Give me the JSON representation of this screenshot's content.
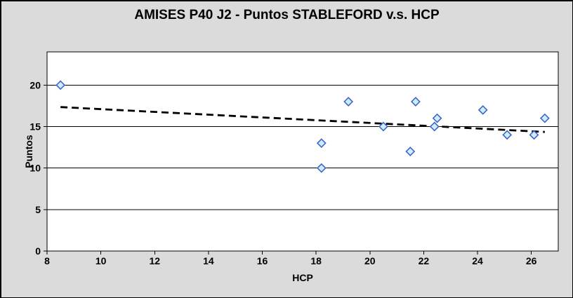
{
  "chart_data": {
    "type": "scatter",
    "title": "AMISES P40 J2 - Puntos STABLEFORD v.s. HCP",
    "xlabel": "HCP",
    "ylabel": "Puntos",
    "xlim": [
      8,
      27
    ],
    "ylim": [
      0,
      24
    ],
    "x_ticks": [
      8,
      10,
      12,
      14,
      16,
      18,
      20,
      22,
      24,
      26
    ],
    "y_ticks": [
      0,
      5,
      10,
      15,
      20
    ],
    "grid": {
      "horizontal": true,
      "vertical": false
    },
    "legend_position": "none",
    "marker": "diamond",
    "points": [
      {
        "x": 8.5,
        "y": 20
      },
      {
        "x": 18.2,
        "y": 13
      },
      {
        "x": 18.2,
        "y": 10
      },
      {
        "x": 19.2,
        "y": 18
      },
      {
        "x": 20.5,
        "y": 15
      },
      {
        "x": 21.5,
        "y": 12
      },
      {
        "x": 21.7,
        "y": 18
      },
      {
        "x": 22.4,
        "y": 15
      },
      {
        "x": 22.5,
        "y": 16
      },
      {
        "x": 24.2,
        "y": 17
      },
      {
        "x": 25.1,
        "y": 14
      },
      {
        "x": 26.1,
        "y": 14
      },
      {
        "x": 26.5,
        "y": 16
      }
    ],
    "trendline": {
      "type": "linear",
      "style": "dashed",
      "x1": 8.5,
      "y1": 17.35,
      "x2": 26.5,
      "y2": 14.35
    },
    "colors": {
      "background": "#DBDBDB",
      "plot_background": "#FFFFFF",
      "gridline": "#000000",
      "axis": "#000000",
      "text": "#000000",
      "marker_fill": "#CCECFF",
      "marker_stroke": "#3A5FC8",
      "trendline": "#000000"
    }
  }
}
